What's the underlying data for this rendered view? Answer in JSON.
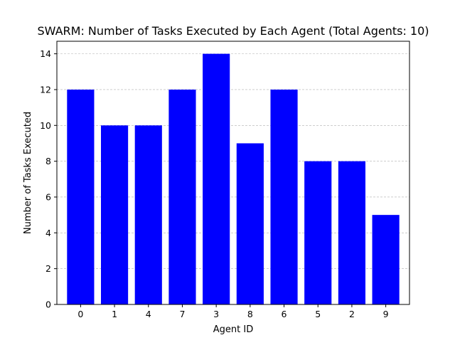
{
  "chart_data": {
    "type": "bar",
    "title": "SWARM: Number of Tasks Executed by Each Agent (Total Agents: 10)",
    "xlabel": "Agent ID",
    "ylabel": "Number of Tasks Executed",
    "categories": [
      "0",
      "1",
      "4",
      "7",
      "3",
      "8",
      "6",
      "5",
      "2",
      "9"
    ],
    "values": [
      12,
      10,
      10,
      12,
      14,
      9,
      12,
      8,
      8,
      5
    ],
    "ylim": [
      0,
      14.7
    ],
    "yticks": [
      "0",
      "2",
      "4",
      "6",
      "8",
      "10",
      "12",
      "14"
    ],
    "grid": "horizontal dashed",
    "legend": "none",
    "bar_color": "#0000ff"
  }
}
